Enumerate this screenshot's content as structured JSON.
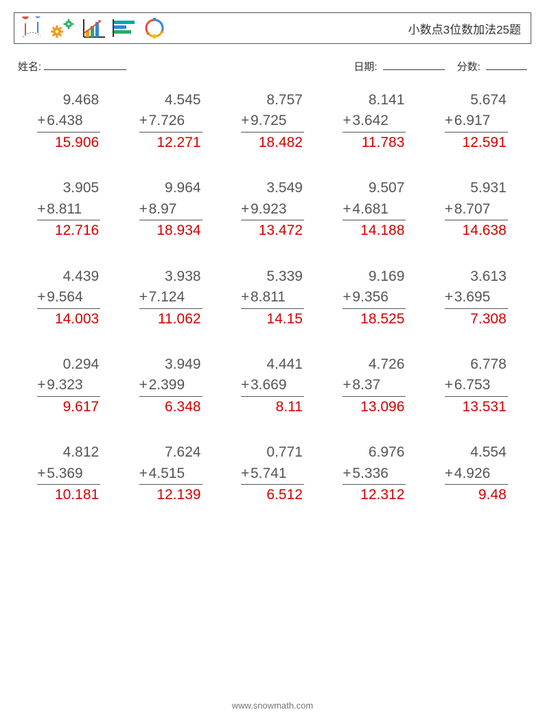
{
  "header": {
    "title": "小数点3位数加法25题"
  },
  "labels": {
    "name": "姓名:",
    "date": "日期:",
    "score": "分数:"
  },
  "style": {
    "answer_color": "#d40000",
    "text_color": "#555555",
    "border_color": "#555555",
    "background": "#ffffff",
    "font_size_problem": 21,
    "columns": 5,
    "rows": 5,
    "underline_widths": {
      "name": 120,
      "date": 90,
      "score": 60
    }
  },
  "icons": {
    "colors": {
      "red": "#e74c3c",
      "orange": "#f39c12",
      "green": "#27ae60",
      "blue": "#2e86de",
      "teal": "#00a8a8",
      "yellow": "#f1c40f"
    }
  },
  "footer": {
    "url": "www.snowmath.com"
  },
  "problems": [
    {
      "a": "9.468",
      "b": "6.438",
      "ans": "15.906"
    },
    {
      "a": "4.545",
      "b": "7.726",
      "ans": "12.271"
    },
    {
      "a": "8.757",
      "b": "9.725",
      "ans": "18.482"
    },
    {
      "a": "8.141",
      "b": "3.642",
      "ans": "11.783"
    },
    {
      "a": "5.674",
      "b": "6.917",
      "ans": "12.591"
    },
    {
      "a": "3.905",
      "b": "8.811",
      "ans": "12.716"
    },
    {
      "a": "9.964",
      "b": "8.97",
      "ans": "18.934"
    },
    {
      "a": "3.549",
      "b": "9.923",
      "ans": "13.472"
    },
    {
      "a": "9.507",
      "b": "4.681",
      "ans": "14.188"
    },
    {
      "a": "5.931",
      "b": "8.707",
      "ans": "14.638"
    },
    {
      "a": "4.439",
      "b": "9.564",
      "ans": "14.003"
    },
    {
      "a": "3.938",
      "b": "7.124",
      "ans": "11.062"
    },
    {
      "a": "5.339",
      "b": "8.811",
      "ans": "14.15"
    },
    {
      "a": "9.169",
      "b": "9.356",
      "ans": "18.525"
    },
    {
      "a": "3.613",
      "b": "3.695",
      "ans": "7.308"
    },
    {
      "a": "0.294",
      "b": "9.323",
      "ans": "9.617"
    },
    {
      "a": "3.949",
      "b": "2.399",
      "ans": "6.348"
    },
    {
      "a": "4.441",
      "b": "3.669",
      "ans": "8.11"
    },
    {
      "a": "4.726",
      "b": "8.37",
      "ans": "13.096"
    },
    {
      "a": "6.778",
      "b": "6.753",
      "ans": "13.531"
    },
    {
      "a": "4.812",
      "b": "5.369",
      "ans": "10.181"
    },
    {
      "a": "7.624",
      "b": "4.515",
      "ans": "12.139"
    },
    {
      "a": "0.771",
      "b": "5.741",
      "ans": "6.512"
    },
    {
      "a": "6.976",
      "b": "5.336",
      "ans": "12.312"
    },
    {
      "a": "4.554",
      "b": "4.926",
      "ans": "9.48"
    }
  ]
}
